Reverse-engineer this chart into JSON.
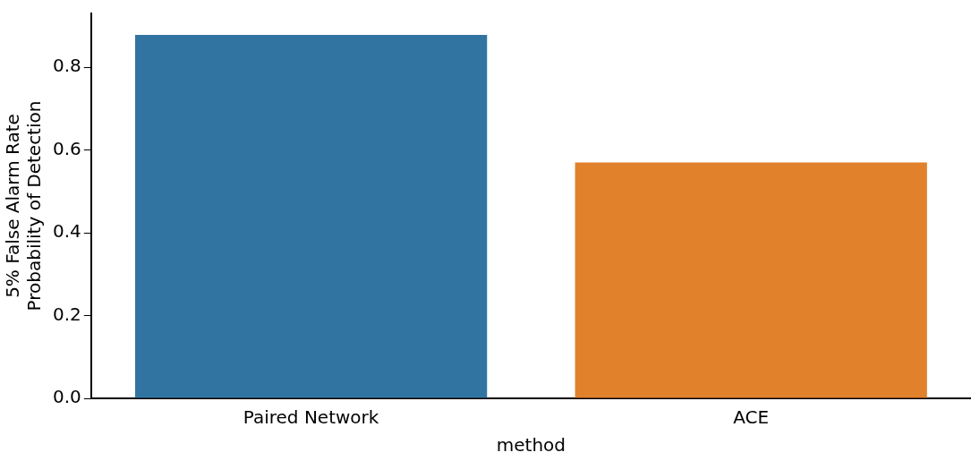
{
  "chart_data": {
    "type": "bar",
    "xlabel": "method",
    "ylabel": "5% False Alarm Rate\nProbability of Detection",
    "categories": [
      "Paired Network",
      "ACE"
    ],
    "values": [
      0.878,
      0.57
    ],
    "colors": [
      "#3274a1",
      "#e1812c"
    ],
    "ylim": [
      0,
      0.93
    ],
    "yticks": [
      {
        "value": 0,
        "label": "0.0"
      },
      0.2,
      0.4,
      0.6,
      0.8
    ],
    "grid": false,
    "legend": false
  }
}
